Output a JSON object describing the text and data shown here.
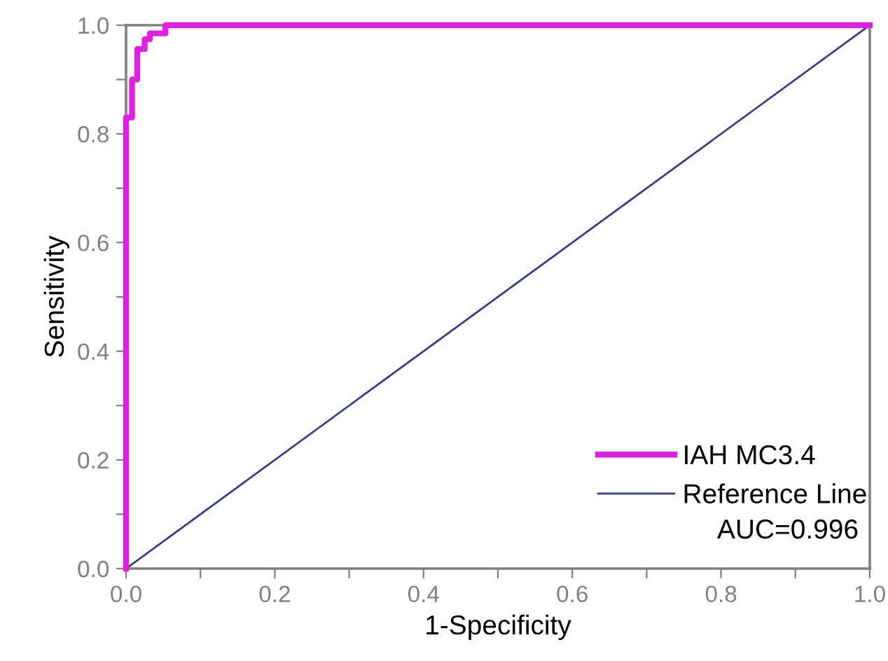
{
  "chart_data": {
    "type": "line",
    "xlabel": "1-Specificity",
    "ylabel": "Sensitivity",
    "xlim": [
      0,
      1
    ],
    "ylim": [
      0,
      1
    ],
    "xticks": [
      {
        "value": 0,
        "label": "0.0"
      },
      {
        "value": 0.1,
        "label": null
      },
      0.2,
      {
        "value": 0.3,
        "label": null
      },
      0.4,
      {
        "value": 0.5,
        "label": null
      },
      0.6,
      {
        "value": 0.7,
        "label": null
      },
      0.8,
      {
        "value": 0.9,
        "label": null
      },
      {
        "value": 1,
        "label": "1.0"
      }
    ],
    "yticks": [
      {
        "value": 0,
        "label": "0.0"
      },
      {
        "value": 0.1,
        "label": null
      },
      0.2,
      {
        "value": 0.3,
        "label": null
      },
      0.4,
      {
        "value": 0.5,
        "label": null
      },
      0.6,
      {
        "value": 0.7,
        "label": null
      },
      0.8,
      {
        "value": 0.9,
        "label": null
      },
      {
        "value": 1,
        "label": "1.0"
      }
    ],
    "series": [
      {
        "name": "IAH MC3.4",
        "color": "#e020e0",
        "x": [
          0,
          0,
          0.008,
          0.008,
          0.015,
          0.015,
          0.025,
          0.025,
          0.032,
          0.032,
          0.053,
          0.053,
          1
        ],
        "values": [
          0,
          0.83,
          0.83,
          0.9,
          0.9,
          0.956,
          0.956,
          0.974,
          0.974,
          0.985,
          0.985,
          1.0,
          1.0
        ]
      },
      {
        "name": "Reference Line",
        "color": "#3a3a8c",
        "x": [
          0,
          1
        ],
        "values": [
          0,
          1
        ]
      }
    ],
    "annotations": [
      "AUC=0.996"
    ],
    "legend": "bottom right",
    "grid": false,
    "marker": "none",
    "line_style": "solid"
  }
}
